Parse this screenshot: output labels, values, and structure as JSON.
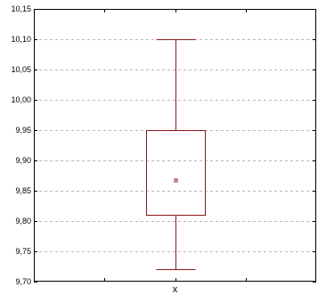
{
  "chart_data": {
    "type": "box",
    "categories": [
      "x"
    ],
    "ylim": [
      9.7,
      10.15
    ],
    "y_ticks": [
      9.7,
      9.75,
      9.8,
      9.85,
      9.9,
      9.95,
      10.0,
      10.05,
      10.1,
      10.15
    ],
    "y_tick_labels": [
      "9,70",
      "9,75",
      "9,80",
      "9,85",
      "9,90",
      "9,95",
      "10,00",
      "10,05",
      "10,10",
      "10,15"
    ],
    "grid": true,
    "box": {
      "whisker_low": 9.72,
      "q1": 9.81,
      "mean": 9.867,
      "q3": 9.95,
      "whisker_high": 10.1
    },
    "colors": {
      "box": "#8b1a1a",
      "grid": "#b8b8b8",
      "axis": "#000000"
    }
  }
}
